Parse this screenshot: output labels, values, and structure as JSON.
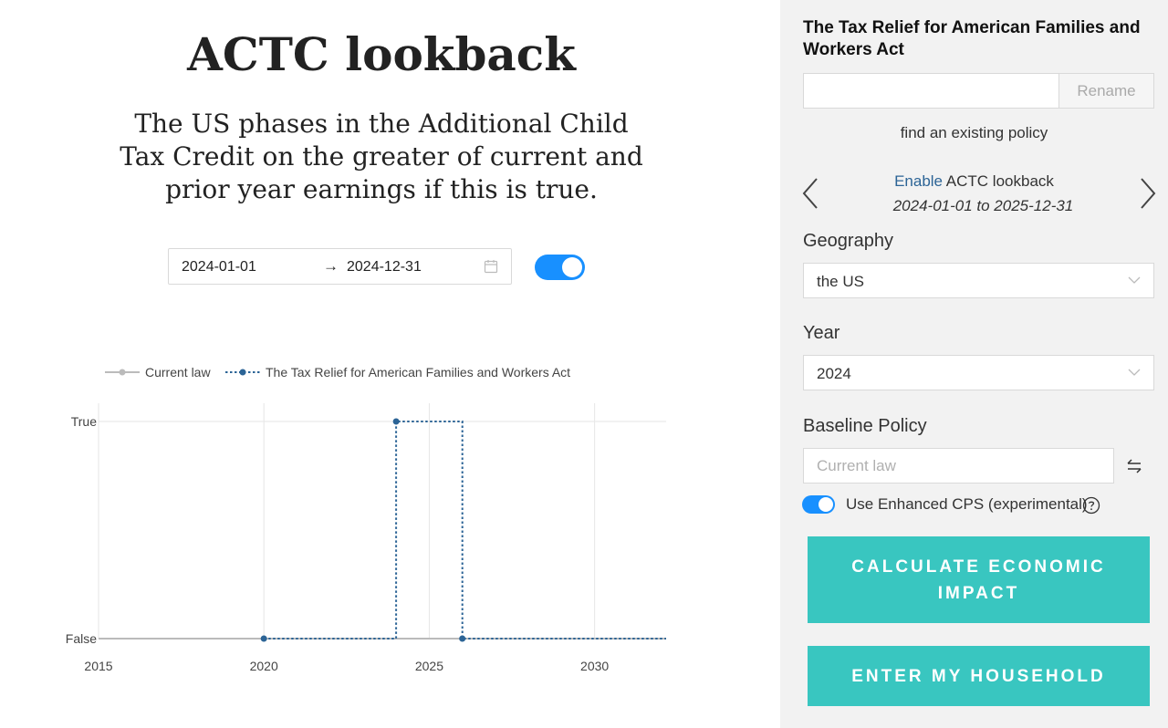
{
  "main": {
    "title": "ACTC lookback",
    "description": "The US phases in the Additional Child Tax Credit on the greater of current and prior year earnings if this is true.",
    "date_range": {
      "start": "2024-01-01",
      "arrow": "→",
      "end": "2024-12-31"
    },
    "toggle_on": true
  },
  "chart_data": {
    "type": "line",
    "legend_placement": "top",
    "series": [
      {
        "name": "Current law",
        "color": "#bbbbbb",
        "style": "solid",
        "x": [
          "2015-01-01",
          "2032-03-01"
        ],
        "y": [
          "False",
          "False"
        ]
      },
      {
        "name": "The Tax Relief for American Families and Workers Act",
        "color": "#2c6496",
        "style": "dotted",
        "x": [
          "2020-01-01",
          "2024-01-01",
          "2024-01-01",
          "2026-01-01",
          "2026-01-01",
          "2032-03-01"
        ],
        "y": [
          "False",
          "False",
          "True",
          "True",
          "False",
          "False"
        ]
      }
    ],
    "x_ticks": [
      "2015",
      "2020",
      "2025",
      "2030"
    ],
    "y_ticks": [
      "True",
      "False"
    ],
    "xlim": [
      "2015-01-01",
      "2032-03-01"
    ],
    "grid": true
  },
  "sidebar": {
    "policy_name": "The Tax Relief for American Families and Workers Act",
    "rename_input_value": "",
    "rename_label": "Rename",
    "find_policy": "find an existing policy",
    "param": {
      "enable_word": "Enable",
      "name": " ACTC lookback",
      "dates": "2024-01-01 to 2025-12-31"
    },
    "geography": {
      "label": "Geography",
      "value": "the US"
    },
    "year": {
      "label": "Year",
      "value": "2024"
    },
    "baseline": {
      "label": "Baseline Policy",
      "placeholder": "Current law"
    },
    "cps": {
      "label": "Use Enhanced CPS (experimental)",
      "on": true
    },
    "calculate_label": "CALCULATE ECONOMIC IMPACT",
    "household_label": "ENTER MY HOUSEHOLD",
    "accent_color": "#39c6c0",
    "toggle_color": "#1890ff"
  }
}
